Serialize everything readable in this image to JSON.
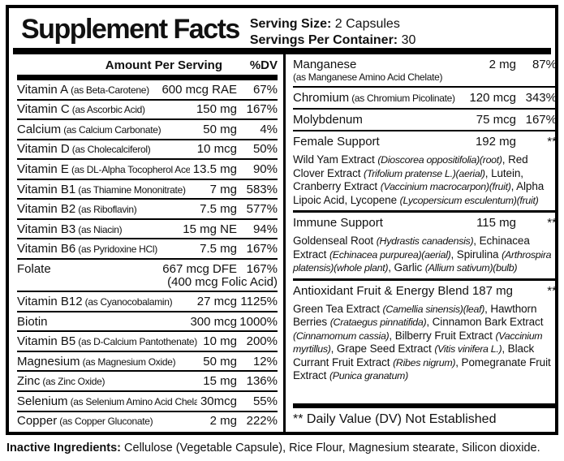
{
  "header": {
    "title": "Supplement Facts",
    "serving_size_label": "Serving Size:",
    "serving_size_value": "2 Capsules",
    "servings_per_container_label": "Servings Per Container:",
    "servings_per_container_value": "30"
  },
  "left_column": {
    "amount_header": "Amount Per Serving",
    "dv_header": "%DV",
    "rows": [
      {
        "name": "Vitamin A",
        "detail": "(as Beta-Carotene)",
        "amount": "600 mcg RAE",
        "dv": "67%"
      },
      {
        "name": "Vitamin C",
        "detail": "(as Ascorbic Acid)",
        "amount": "150 mg",
        "dv": "167%"
      },
      {
        "name": "Calcium",
        "detail": "(as Calcium Carbonate)",
        "amount": "50 mg",
        "dv": "4%"
      },
      {
        "name": "Vitamin D",
        "detail": "(as Cholecalciferol)",
        "amount": "10 mcg",
        "dv": "50%"
      },
      {
        "name": "Vitamin E",
        "detail": "(as DL-Alpha Tocopherol Acetate)",
        "amount": "13.5 mg",
        "dv": "90%"
      },
      {
        "name": "Vitamin B1",
        "detail": "(as Thiamine Mononitrate)",
        "amount": "7 mg",
        "dv": "583%"
      },
      {
        "name": "Vitamin B2",
        "detail": "(as Riboflavin)",
        "amount": "7.5 mg",
        "dv": "577%"
      },
      {
        "name": "Vitamin B3",
        "detail": "(as Niacin)",
        "amount": "15 mg NE",
        "dv": "94%"
      },
      {
        "name": "Vitamin B6",
        "detail": "(as Pyridoxine HCl)",
        "amount": "7.5 mg",
        "dv": "167%"
      },
      {
        "name": "Folate",
        "detail": "",
        "amount": "667 mcg DFE",
        "dv": "167%",
        "amount_note": "(400 mcg Folic Acid)"
      },
      {
        "name": "Vitamin B12",
        "detail": "(as Cyanocobalamin)",
        "amount": "27 mcg",
        "dv": "1125%"
      },
      {
        "name": "Biotin",
        "detail": "",
        "amount": "300 mcg",
        "dv": "1000%"
      },
      {
        "name": "Vitamin B5",
        "detail": "(as D-Calcium Pantothenate)",
        "amount": "10 mg",
        "dv": "200%"
      },
      {
        "name": "Magnesium",
        "detail": "(as Magnesium Oxide)",
        "amount": "50 mg",
        "dv": "12%"
      },
      {
        "name": "Zinc",
        "detail": "(as Zinc Oxide)",
        "amount": "15 mg",
        "dv": "136%"
      },
      {
        "name": "Selenium",
        "detail": "(as Selenium Amino Acid Chelate)",
        "amount": "30mcg",
        "dv": "55%"
      },
      {
        "name": "Copper",
        "detail": "(as Copper Gluconate)",
        "amount": "2 mg",
        "dv": "222%"
      }
    ]
  },
  "right_column": {
    "blocks": [
      {
        "type": "nutrient",
        "name": "Manganese",
        "sub": "(as Manganese Amino Acid Chelate)",
        "amount": "2 mg",
        "dv": "87%",
        "divider": false
      },
      {
        "type": "nutrient",
        "name": "Chromium",
        "detail": "(as Chromium Picolinate)",
        "amount": "120 mcg",
        "dv": "343%",
        "divider": true
      },
      {
        "type": "nutrient",
        "name": "Molybdenum",
        "amount": "75 mcg",
        "dv": "167%",
        "divider": true
      },
      {
        "type": "nutrient",
        "name": "Female Support",
        "amount": "192 mg",
        "dv": "**",
        "divider": true
      },
      {
        "type": "paragraph",
        "divider": false,
        "segments": [
          {
            "text": "Wild Yam Extract ",
            "italic": false
          },
          {
            "text": "(Dioscorea oppositifolia)(root)",
            "italic": true
          },
          {
            "text": ", Red Clover Extract ",
            "italic": false
          },
          {
            "text": "(Trifolium pratense L.)(aerial)",
            "italic": true
          },
          {
            "text": ", Lutein, Cranberry Extract ",
            "italic": false
          },
          {
            "text": "(Vaccinium macrocarpon)(fruit)",
            "italic": true
          },
          {
            "text": ", Alpha Lipoic Acid, Lycopene ",
            "italic": false
          },
          {
            "text": "(Lycopersicum esculentum)(fruit)",
            "italic": true
          }
        ]
      },
      {
        "type": "nutrient",
        "name": "Immune Support",
        "amount": "115 mg",
        "dv": "**",
        "divider": true,
        "thick": true
      },
      {
        "type": "paragraph",
        "divider": false,
        "segments": [
          {
            "text": "Goldenseal Root ",
            "italic": false
          },
          {
            "text": "(Hydrastis canadensis)",
            "italic": true
          },
          {
            "text": ", Echinacea Extract ",
            "italic": false
          },
          {
            "text": "(Echinacea purpurea)(aerial)",
            "italic": true
          },
          {
            "text": ", Spirulina ",
            "italic": false
          },
          {
            "text": "(Arthrospira platensis)(whole plant)",
            "italic": true
          },
          {
            "text": ", Garlic ",
            "italic": false
          },
          {
            "text": "(Allium sativum)(bulb)",
            "italic": true
          }
        ]
      },
      {
        "type": "nutrient",
        "name": "Antioxidant Fruit & Energy Blend 187 mg",
        "amount": "",
        "dv": "**",
        "divider": true,
        "thick": true
      },
      {
        "type": "paragraph",
        "divider": false,
        "segments": [
          {
            "text": "Green Tea Extract ",
            "italic": false
          },
          {
            "text": "(Camellia sinensis)(leaf)",
            "italic": true
          },
          {
            "text": ", Hawthorn Berries ",
            "italic": false
          },
          {
            "text": "(Crataegus pinnatifida)",
            "italic": true
          },
          {
            "text": ", Cinnamon Bark Extract ",
            "italic": false
          },
          {
            "text": "(Cinnamomum cassia)",
            "italic": true
          },
          {
            "text": ", Bilberry Fruit Extract ",
            "italic": false
          },
          {
            "text": "(Vaccinium myrtillus)",
            "italic": true
          },
          {
            "text": ", Grape Seed Extract ",
            "italic": false
          },
          {
            "text": "(Vitis vinifera L.)",
            "italic": true
          },
          {
            "text": ", Black Currant Fruit Extract ",
            "italic": false
          },
          {
            "text": "(Ribes nigrum)",
            "italic": true
          },
          {
            "text": ", Pomegranate Fruit Extract ",
            "italic": false
          },
          {
            "text": "(Punica granatum)",
            "italic": true
          }
        ]
      }
    ],
    "footnote": "** Daily Value (DV) Not Established"
  },
  "footer": {
    "inactive_label": "Inactive Ingredients:",
    "inactive_text": "Cellulose (Vegetable Capsule), Rice Flour, Magnesium stearate, Silicon dioxide."
  }
}
